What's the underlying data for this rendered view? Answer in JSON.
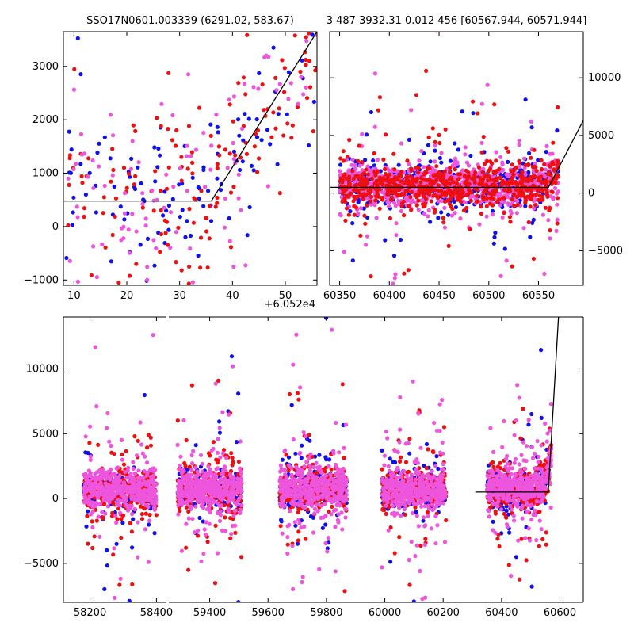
{
  "colors": {
    "blue": "#1010ee",
    "red": "#ee1010",
    "pink": "#ee55dd",
    "line": "#000000"
  },
  "chart_data": [
    {
      "type": "scatter",
      "panel": "top-left",
      "title": "SSO17N0601.003339 (6291.02, 583.67)",
      "offset_label": "+6.052e4",
      "xlim": [
        8,
        56
      ],
      "ylim": [
        -1100,
        3650
      ],
      "xticks": [
        10,
        20,
        30,
        40,
        50
      ],
      "yticks": [
        -1000,
        0,
        1000,
        2000,
        3000
      ],
      "yaxis_side": "left",
      "model_line": [
        [
          8,
          480
        ],
        [
          36,
          480
        ],
        [
          56,
          3650
        ]
      ],
      "scatter_seed": 11,
      "scatter_counts": {
        "blue": 120,
        "red": 150,
        "pink": 110
      },
      "scatter_shape": {
        "x_range": [
          8,
          56
        ],
        "y_base": 700,
        "y_spread": 900,
        "ramp_start": 36,
        "ramp_slope": 140
      }
    },
    {
      "type": "scatter",
      "panel": "top-right",
      "title": "3 487 3932.31 0.012 456 [60567.944, 60571.944]",
      "xlim": [
        60340,
        60595
      ],
      "ylim": [
        -8000,
        14000
      ],
      "xticks": [
        60350,
        60400,
        60450,
        60500,
        60550
      ],
      "yticks": [
        -5000,
        0,
        5000,
        10000
      ],
      "yaxis_side": "right",
      "model_line": [
        [
          60340,
          500
        ],
        [
          60560,
          500
        ],
        [
          60595,
          6300
        ]
      ],
      "scatter_seed": 23,
      "scatter_counts": {
        "blue": 500,
        "red": 700,
        "pink": 900
      },
      "scatter_shape": {
        "x_range": [
          60350,
          60570
        ],
        "y_base": 600,
        "y_spread": 900,
        "ramp_start": 60550,
        "ramp_slope": 60
      }
    },
    {
      "type": "scatter",
      "panel": "bottom",
      "title": "",
      "ylim": [
        -8000,
        14000
      ],
      "yticks": [
        -5000,
        0,
        5000,
        10000
      ],
      "segments": [
        {
          "xlim": [
            58120,
            58430
          ],
          "xticks": [
            58200,
            58400
          ],
          "clusters": [
            [
              58180,
              58400
            ]
          ]
        },
        {
          "xlim": [
            59260,
            60680
          ],
          "xticks": [
            59400,
            59600,
            59800,
            60000,
            60200,
            60400,
            60600
          ],
          "clusters": [
            [
              59290,
              59510
            ],
            [
              59640,
              59870
            ],
            [
              59990,
              60210
            ],
            [
              60350,
              60570
            ]
          ]
        }
      ],
      "model_line": [
        [
          60310,
          500
        ],
        [
          60560,
          500
        ],
        [
          60595,
          14000
        ]
      ],
      "scatter_seed": 37,
      "scatter_counts_per_cluster": {
        "blue": 200,
        "red": 300,
        "pink": 450
      }
    }
  ]
}
